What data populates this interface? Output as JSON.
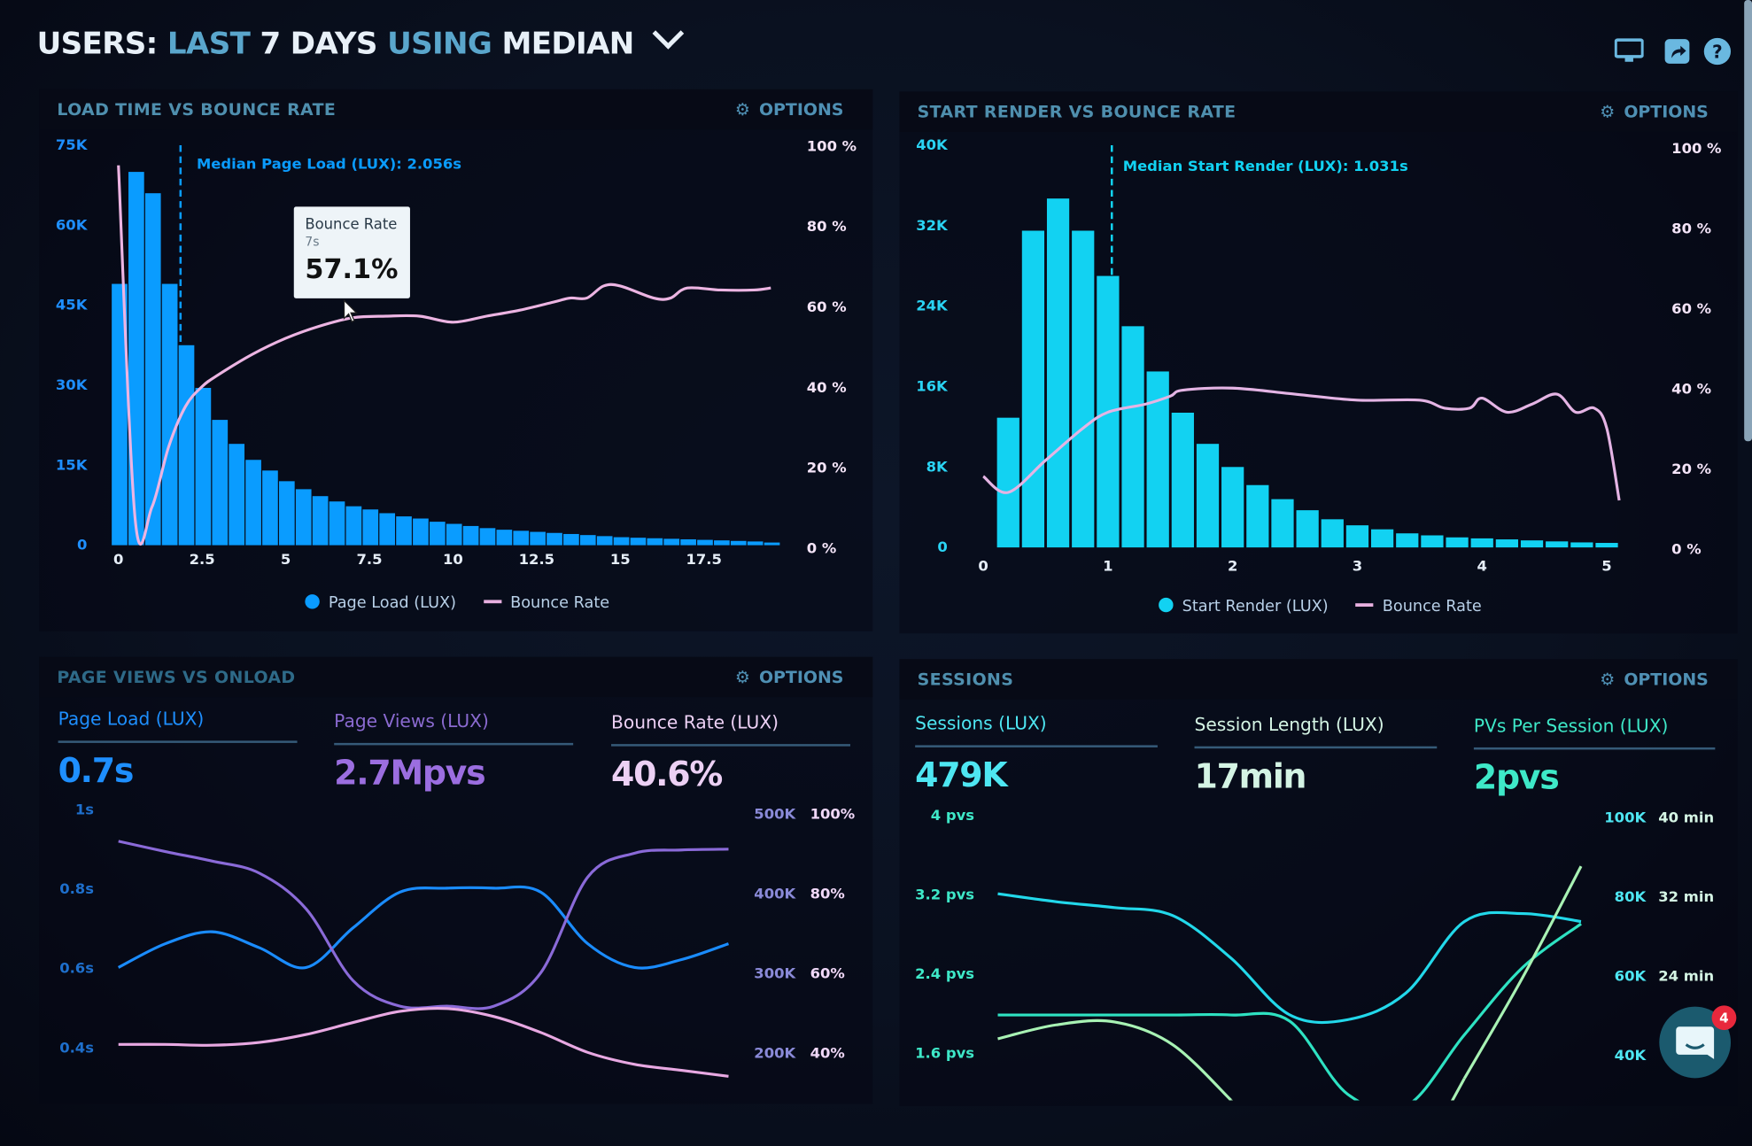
{
  "header": {
    "title_parts": [
      "USERS:",
      "LAST",
      "7 DAYS",
      "USING",
      "MEDIAN"
    ],
    "icons": [
      "monitor-icon",
      "share-icon",
      "help-icon"
    ]
  },
  "panels": {
    "load_time": {
      "title": "LOAD TIME VS BOUNCE RATE",
      "options": "OPTIONS"
    },
    "start_render": {
      "title": "START RENDER VS BOUNCE RATE",
      "options": "OPTIONS"
    },
    "page_views": {
      "title": "PAGE VIEWS VS ONLOAD",
      "options": "OPTIONS",
      "kpis": [
        {
          "label": "Page Load (LUX)",
          "value": "0.7s",
          "color": "#1e8fff"
        },
        {
          "label": "Page Views (LUX)",
          "value": "2.7Mpvs",
          "color": "#9b6ee0"
        },
        {
          "label": "Bounce Rate (LUX)",
          "value": "40.6%",
          "color": "#ecd0f4"
        }
      ]
    },
    "sessions": {
      "title": "SESSIONS",
      "options": "OPTIONS",
      "kpis": [
        {
          "label": "Sessions (LUX)",
          "value": "479K",
          "color": "#4ee6f2"
        },
        {
          "label": "Session Length (LUX)",
          "value": "17min",
          "color": "#d4f4e4"
        },
        {
          "label": "PVs Per Session (LUX)",
          "value": "2pvs",
          "color": "#3ee8c8"
        }
      ]
    }
  },
  "tooltip": {
    "title": "Bounce Rate",
    "x": "7s",
    "value": "57.1%"
  },
  "chat": {
    "badge": "4"
  },
  "chart_data": [
    {
      "type": "bar",
      "title": "LOAD TIME VS BOUNCE RATE",
      "x_ticks": [
        "0",
        "2.5",
        "5",
        "7.5",
        "10",
        "12.5",
        "15",
        "17.5"
      ],
      "x_tick_values": [
        0,
        2.5,
        5,
        7.5,
        10,
        12.5,
        15,
        17.5
      ],
      "y_ticks": [
        "0",
        "15K",
        "30K",
        "45K",
        "60K",
        "75K"
      ],
      "y2_ticks": [
        "0 %",
        "20 %",
        "40 %",
        "60 %",
        "80 %",
        "100 %"
      ],
      "ylim": [
        0,
        75000
      ],
      "y2lim": [
        0,
        100
      ],
      "median_label": "Median Page Load (LUX): 2.056s",
      "median_value": 2.056,
      "bar_color": "#0a9cff",
      "line_color": "#ecb4e2",
      "series": [
        {
          "name": "Page Load (LUX)",
          "kind": "bar",
          "x": [
            0,
            0.5,
            1,
            1.5,
            2,
            2.5,
            3,
            3.5,
            4,
            4.5,
            5,
            5.5,
            6,
            6.5,
            7,
            7.5,
            8,
            8.5,
            9,
            9.5,
            10,
            10.5,
            11,
            11.5,
            12,
            12.5,
            13,
            13.5,
            14,
            14.5,
            15,
            15.5,
            16,
            16.5,
            17,
            17.5,
            18,
            18.5,
            19,
            19.5
          ],
          "values": [
            49000,
            70000,
            66000,
            49000,
            37500,
            29500,
            23500,
            19000,
            16000,
            14000,
            12000,
            10500,
            9200,
            8200,
            7300,
            6700,
            6000,
            5400,
            5000,
            4400,
            4000,
            3600,
            3200,
            2900,
            2700,
            2500,
            2300,
            2100,
            1900,
            1700,
            1500,
            1400,
            1300,
            1200,
            1100,
            1000,
            900,
            800,
            700,
            500
          ]
        },
        {
          "name": "Bounce Rate",
          "kind": "line",
          "x": [
            0,
            0.5,
            1,
            1.5,
            2,
            2.5,
            3,
            4,
            5,
            6,
            7,
            8,
            9,
            10,
            11,
            12,
            13,
            13.5,
            14,
            14.5,
            15,
            16,
            16.5,
            17,
            18,
            19,
            19.5
          ],
          "values": [
            95,
            7,
            10,
            25,
            35,
            40,
            43,
            48,
            52,
            55,
            57.1,
            57.5,
            57.5,
            56,
            57.5,
            59,
            61,
            62,
            62,
            65,
            65,
            62,
            62,
            64.5,
            64,
            64,
            64.5
          ]
        }
      ],
      "legend": "bottom"
    },
    {
      "type": "bar",
      "title": "START RENDER VS BOUNCE RATE",
      "x_ticks": [
        "0",
        "1",
        "2",
        "3",
        "4",
        "5"
      ],
      "x_tick_values": [
        0,
        1,
        2,
        3,
        4,
        5
      ],
      "y_ticks": [
        "0",
        "8K",
        "16K",
        "24K",
        "32K",
        "40K"
      ],
      "y2_ticks": [
        "0 %",
        "20 %",
        "40 %",
        "60 %",
        "80 %",
        "100 %"
      ],
      "ylim": [
        0,
        40000
      ],
      "y2lim": [
        0,
        100
      ],
      "median_label": "Median Start Render (LUX): 1.031s",
      "median_value": 1.031,
      "bar_color": "#12d2f2",
      "line_color": "#e4b4e4",
      "series": [
        {
          "name": "Start Render (LUX)",
          "kind": "bar",
          "x": [
            0.2,
            0.4,
            0.6,
            0.8,
            1.0,
            1.2,
            1.4,
            1.6,
            1.8,
            2.0,
            2.2,
            2.4,
            2.6,
            2.8,
            3.0,
            3.2,
            3.4,
            3.6,
            3.8,
            4.0,
            4.2,
            4.4,
            4.6,
            4.8,
            5.0
          ],
          "values": [
            12900,
            31500,
            34700,
            31500,
            27000,
            22000,
            17500,
            13400,
            10300,
            8000,
            6200,
            4800,
            3700,
            2800,
            2200,
            1800,
            1400,
            1200,
            1000,
            900,
            800,
            700,
            600,
            500,
            450
          ]
        },
        {
          "name": "Bounce Rate",
          "kind": "line",
          "x": [
            0,
            0.2,
            0.5,
            0.8,
            1.0,
            1.3,
            1.5,
            1.6,
            2.0,
            2.5,
            3.0,
            3.5,
            3.7,
            3.9,
            4.0,
            4.2,
            4.4,
            4.6,
            4.75,
            4.9,
            5.0,
            5.1
          ],
          "values": [
            18,
            14,
            22,
            30,
            34,
            36,
            38,
            39.5,
            40,
            38.5,
            37,
            37,
            35,
            35,
            37.5,
            34,
            36,
            38.5,
            34,
            35,
            30,
            12
          ]
        }
      ],
      "legend": "bottom"
    },
    {
      "type": "line",
      "title": "PAGE VIEWS VS ONLOAD",
      "y_ticks": [
        "0.4s",
        "0.6s",
        "0.8s",
        "1s"
      ],
      "y2_ticks": [
        "200K",
        "300K",
        "400K",
        "500K"
      ],
      "y3_ticks": [
        "40%",
        "60%",
        "80%",
        "100%"
      ],
      "ylim": [
        0.4,
        1.0
      ],
      "y2lim": [
        200000,
        500000
      ],
      "y3lim": [
        40,
        100
      ],
      "series": [
        {
          "name": "Page Load (LUX)",
          "axis": "y",
          "color": "#1a8cff",
          "values": [
            0.6,
            0.66,
            0.69,
            0.65,
            0.6,
            0.7,
            0.79,
            0.8,
            0.8,
            0.79,
            0.66,
            0.6,
            0.62,
            0.66
          ]
        },
        {
          "name": "Page Views (LUX)",
          "axis": "y2",
          "color": "#8a6ad8",
          "values": [
            465000,
            452000,
            440000,
            425000,
            380000,
            290000,
            258000,
            258000,
            258000,
            300000,
            420000,
            450000,
            454000,
            455000
          ]
        },
        {
          "name": "Bounce Rate (LUX)",
          "axis": "y3",
          "color": "#e8a8e2",
          "values": [
            42,
            42,
            41.8,
            42.5,
            44.5,
            47.5,
            50.3,
            51,
            49,
            45,
            40,
            37,
            35.5,
            34
          ]
        }
      ]
    },
    {
      "type": "line",
      "title": "SESSIONS",
      "y_ticks": [
        "1.6 pvs",
        "2.4 pvs",
        "3.2 pvs",
        "4 pvs"
      ],
      "y2_ticks": [
        "40K",
        "60K",
        "80K",
        "100K"
      ],
      "y3_ticks": [
        "24 min",
        "32 min",
        "40 min"
      ],
      "ylim": [
        1.6,
        4.0
      ],
      "y2lim": [
        40000,
        100000
      ],
      "y3lim": [
        24,
        40
      ],
      "series": [
        {
          "name": "PVs Per Session (LUX)",
          "axis": "y",
          "color": "#22d8ea",
          "values": [
            3.2,
            3.12,
            3.06,
            2.98,
            2.55,
            1.98,
            1.93,
            2.2,
            2.92,
            3.0,
            2.92
          ]
        },
        {
          "name": "Sessions (LUX)",
          "axis": "y2",
          "color": "#2ee2c2",
          "values": [
            50000,
            50000,
            50000,
            50000,
            50000,
            48500,
            30000,
            27000,
            45000,
            62000,
            73000
          ]
        },
        {
          "name": "Session Length (LUX)",
          "axis": "y3",
          "color": "#a8f2b4",
          "values": [
            17.6,
            19,
            19.3,
            17,
            11.4,
            null,
            null,
            null,
            13.6,
            23.8,
            35
          ]
        }
      ]
    }
  ]
}
